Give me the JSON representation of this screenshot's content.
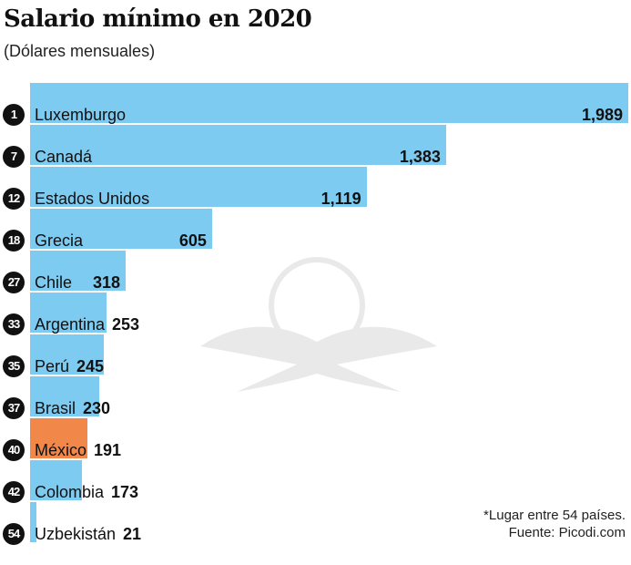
{
  "chart_data": {
    "type": "bar",
    "orientation": "horizontal",
    "title": "Salario mínimo en 2020",
    "subtitle": "(Dólares mensuales)",
    "categories": [
      "Luxemburgo",
      "Canadá",
      "Estados Unidos",
      "Grecia",
      "Chile",
      "Argentina",
      "Perú",
      "Brasil",
      "México",
      "Colombia",
      "Uzbekistán"
    ],
    "ranks": [
      "1",
      "7",
      "12",
      "18",
      "27",
      "33",
      "35",
      "37",
      "40",
      "42",
      "54"
    ],
    "values": [
      1989,
      1383,
      1119,
      605,
      318,
      253,
      245,
      230,
      191,
      173,
      21
    ],
    "value_labels": [
      "1,989",
      "1,383",
      "1,119",
      "605",
      "318",
      "253",
      "245",
      "230",
      "191",
      "173",
      "21"
    ],
    "highlight": "México",
    "colors": {
      "default": "#7ecbf2",
      "highlight": "#f2874a",
      "rank_badge": "#111111"
    },
    "xlim": [
      0,
      1989
    ],
    "grid": false,
    "notes": [
      "*Lugar entre 54 países.",
      "Fuente: Picodi.com"
    ]
  }
}
